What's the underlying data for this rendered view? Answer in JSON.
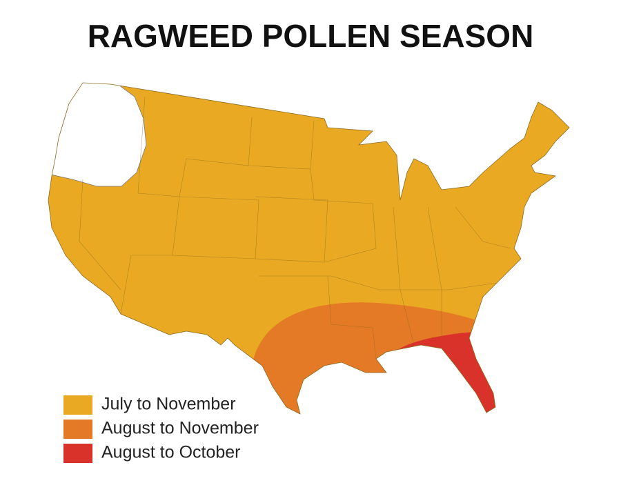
{
  "title": "RAGWEED POLLEN SEASON",
  "legend": [
    {
      "label": "July to November",
      "color": "#e9a922"
    },
    {
      "label": "August to November",
      "color": "#e47a26"
    },
    {
      "label": "August to October",
      "color": "#d9322a"
    }
  ]
}
